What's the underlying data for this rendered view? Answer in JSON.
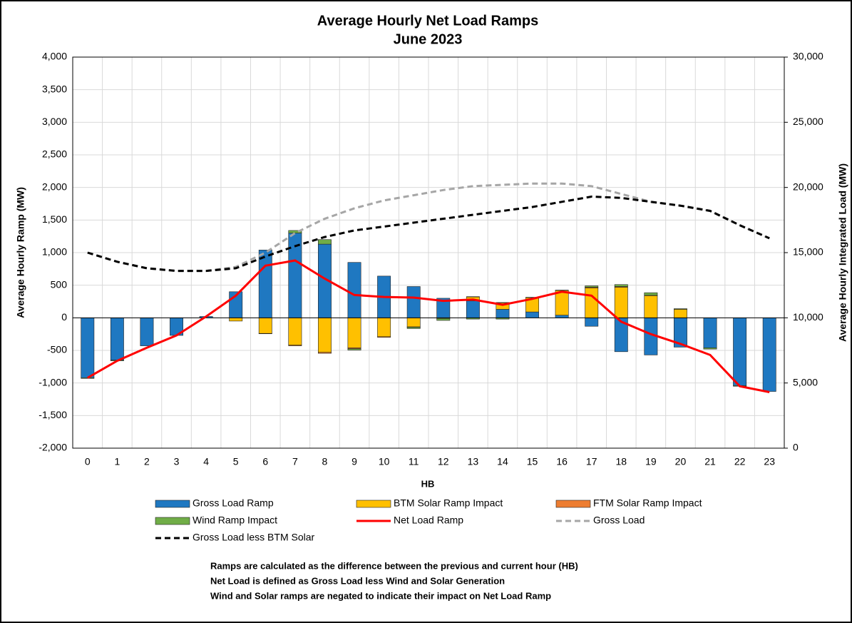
{
  "chart_data": {
    "type": "bar",
    "title": "Average Hourly Net Load Ramps",
    "subtitle": "June 2023",
    "x_label": "HB",
    "y_label": "Average Hourly Ramp (MW)",
    "y2_label": "Average Hourly Integrated Load (MW)",
    "categories": [
      "0",
      "1",
      "2",
      "3",
      "4",
      "5",
      "6",
      "7",
      "8",
      "9",
      "10",
      "11",
      "12",
      "13",
      "14",
      "15",
      "16",
      "17",
      "18",
      "19",
      "20",
      "21",
      "22",
      "23"
    ],
    "stacked": true,
    "grid": true,
    "legend": "bottom",
    "series": [
      {
        "name": "Gross Load Ramp",
        "type": "bar",
        "color": "#1f78c1",
        "values": [
          -920,
          -650,
          -430,
          -270,
          20,
          400,
          1040,
          1300,
          1130,
          850,
          640,
          480,
          300,
          260,
          130,
          90,
          40,
          -130,
          -520,
          -570,
          -450,
          -460,
          -1040,
          -1130
        ]
      },
      {
        "name": "BTM Solar Ramp Impact",
        "type": "bar",
        "color": "#ffc000",
        "values": [
          0,
          0,
          0,
          0,
          0,
          -50,
          -240,
          -420,
          -530,
          -460,
          -290,
          -140,
          -10,
          60,
          100,
          220,
          380,
          460,
          470,
          340,
          130,
          0,
          0,
          0
        ]
      },
      {
        "name": "FTM Solar Ramp Impact",
        "type": "bar",
        "color": "#ed7d31",
        "values": [
          0,
          0,
          0,
          0,
          0,
          0,
          -5,
          -10,
          -15,
          -15,
          -10,
          -5,
          0,
          5,
          5,
          5,
          5,
          10,
          10,
          5,
          0,
          0,
          0,
          0
        ]
      },
      {
        "name": "Wind Ramp Impact",
        "type": "bar",
        "color": "#70ad47",
        "values": [
          -10,
          -10,
          0,
          0,
          0,
          0,
          0,
          40,
          70,
          -20,
          0,
          -20,
          -30,
          -20,
          -20,
          0,
          0,
          20,
          30,
          40,
          10,
          -20,
          -10,
          0
        ]
      },
      {
        "name": "Net Load Ramp",
        "type": "line",
        "color": "#ff0000",
        "values": [
          -920,
          -660,
          -460,
          -270,
          20,
          340,
          800,
          880,
          600,
          350,
          320,
          310,
          260,
          280,
          200,
          290,
          400,
          340,
          -60,
          -250,
          -400,
          -570,
          -1050,
          -1140
        ]
      },
      {
        "name": "Gross Load",
        "type": "line",
        "axis": "y2",
        "dash": true,
        "color": "#a6a6a6",
        "values": [
          15000,
          14300,
          13800,
          13600,
          13600,
          13900,
          15000,
          16500,
          17600,
          18400,
          19000,
          19400,
          19800,
          20100,
          20200,
          20300,
          20300,
          20100,
          19500,
          18900,
          18600,
          18200,
          17100,
          16100
        ]
      },
      {
        "name": "Gross Load less BTM Solar",
        "type": "line",
        "axis": "y2",
        "dash": true,
        "color": "#000000",
        "values": [
          15000,
          14300,
          13800,
          13600,
          13600,
          13800,
          14700,
          15500,
          16200,
          16700,
          17000,
          17300,
          17600,
          17900,
          18200,
          18500,
          18900,
          19300,
          19200,
          18900,
          18600,
          18200,
          17100,
          16100
        ]
      }
    ],
    "ylim": [
      -2000,
      4000
    ],
    "yticks": [
      {
        "value": -2000,
        "label": "-2,000"
      },
      {
        "value": -1500,
        "label": "-1,500"
      },
      {
        "value": -1000,
        "label": "-1,000"
      },
      -500,
      0,
      500,
      {
        "value": 1000,
        "label": "1,000"
      },
      {
        "value": 1500,
        "label": "1,500"
      },
      {
        "value": 2000,
        "label": "2,000"
      },
      {
        "value": 2500,
        "label": "2,500"
      },
      {
        "value": 3000,
        "label": "3,000"
      },
      {
        "value": 3500,
        "label": "3,500"
      },
      {
        "value": 4000,
        "label": "4,000"
      }
    ],
    "y2lim": [
      0,
      30000
    ],
    "y2ticks": [
      0,
      {
        "value": 5000,
        "label": "5,000"
      },
      {
        "value": 10000,
        "label": "10,000"
      },
      {
        "value": 15000,
        "label": "15,000"
      },
      {
        "value": 20000,
        "label": "20,000"
      },
      {
        "value": 25000,
        "label": "25,000"
      },
      {
        "value": 30000,
        "label": "30,000"
      }
    ],
    "notes": [
      "Ramps are calculated as the difference between the previous and current hour (HB)",
      "Net Load is defined as Gross Load less Wind and Solar Generation",
      "Wind and Solar ramps are negated to indicate their impact on Net Load Ramp"
    ]
  }
}
